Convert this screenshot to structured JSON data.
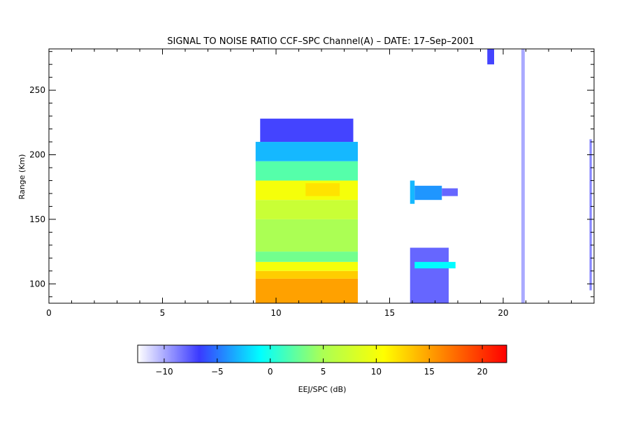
{
  "chart_data": {
    "type": "heatmap",
    "title": "SIGNAL TO NOISE RATIO CCF–SPC Channel(A) – DATE: 17–Sep–2001",
    "xlabel": "",
    "ylabel": "Range (Km)",
    "xlim": [
      0,
      24
    ],
    "ylim": [
      85,
      282
    ],
    "x_ticks": [
      {
        "value": 0,
        "label": "0"
      },
      {
        "value": 5,
        "label": "5"
      },
      {
        "value": 10,
        "label": "10"
      },
      {
        "value": 15,
        "label": "15"
      },
      {
        "value": 20,
        "label": "20"
      }
    ],
    "y_ticks": [
      {
        "value": 100,
        "label": "100"
      },
      {
        "value": 150,
        "label": "150"
      },
      {
        "value": 200,
        "label": "200"
      },
      {
        "value": 250,
        "label": "250"
      }
    ],
    "x_minor_step": 1,
    "y_minor_step": 10,
    "colorbar": {
      "label": "EEJ/SPC (dB)",
      "range": [
        -12.5,
        22.3
      ],
      "ticks": [
        {
          "value": -10,
          "label": "−10"
        },
        {
          "value": -5,
          "label": "−5"
        },
        {
          "value": 0,
          "label": "0"
        },
        {
          "value": 5,
          "label": "5"
        },
        {
          "value": 10,
          "label": "10"
        },
        {
          "value": 15,
          "label": "15"
        },
        {
          "value": 20,
          "label": "20"
        }
      ],
      "colormap": [
        "#ffffff",
        "#3a3aff",
        "#00ffff",
        "#aaff55",
        "#ffff00",
        "#ff8000",
        "#ff0000"
      ]
    },
    "regions": [
      {
        "x0": 9.1,
        "x1": 13.6,
        "y0": 85,
        "y1": 104,
        "snr": 15
      },
      {
        "x0": 9.1,
        "x1": 13.6,
        "y0": 104,
        "y1": 110,
        "snr": 13
      },
      {
        "x0": 9.1,
        "x1": 13.6,
        "y0": 110,
        "y1": 117,
        "snr": 10
      },
      {
        "x0": 9.1,
        "x1": 13.6,
        "y0": 117,
        "y1": 125,
        "snr": 3
      },
      {
        "x0": 9.1,
        "x1": 13.6,
        "y0": 125,
        "y1": 150,
        "snr": 5
      },
      {
        "x0": 9.1,
        "x1": 13.6,
        "y0": 150,
        "y1": 165,
        "snr": 7
      },
      {
        "x0": 9.1,
        "x1": 13.6,
        "y0": 165,
        "y1": 180,
        "snr": 10
      },
      {
        "x0": 9.1,
        "x1": 13.6,
        "y0": 180,
        "y1": 195,
        "snr": 2
      },
      {
        "x0": 9.1,
        "x1": 13.6,
        "y0": 195,
        "y1": 210,
        "snr": -3
      },
      {
        "x0": 9.3,
        "x1": 13.4,
        "y0": 210,
        "y1": 228,
        "snr": -7
      },
      {
        "x0": 11.3,
        "x1": 12.8,
        "y0": 168,
        "y1": 178,
        "snr": 12
      },
      {
        "x0": 15.9,
        "x1": 16.1,
        "y0": 162,
        "y1": 180,
        "snr": -3
      },
      {
        "x0": 16.1,
        "x1": 17.3,
        "y0": 165,
        "y1": 176,
        "snr": -4
      },
      {
        "x0": 17.3,
        "x1": 18.0,
        "y0": 168,
        "y1": 174,
        "snr": -8
      },
      {
        "x0": 15.9,
        "x1": 17.6,
        "y0": 85,
        "y1": 128,
        "snr": -8
      },
      {
        "x0": 16.1,
        "x1": 17.9,
        "y0": 112,
        "y1": 117,
        "snr": -1
      },
      {
        "x0": 19.3,
        "x1": 19.6,
        "y0": 270,
        "y1": 282,
        "snr": -7
      },
      {
        "x0": 20.8,
        "x1": 20.95,
        "y0": 85,
        "y1": 282,
        "snr": -10
      },
      {
        "x0": 23.8,
        "x1": 23.9,
        "y0": 95,
        "y1": 212,
        "snr": -9
      }
    ]
  }
}
